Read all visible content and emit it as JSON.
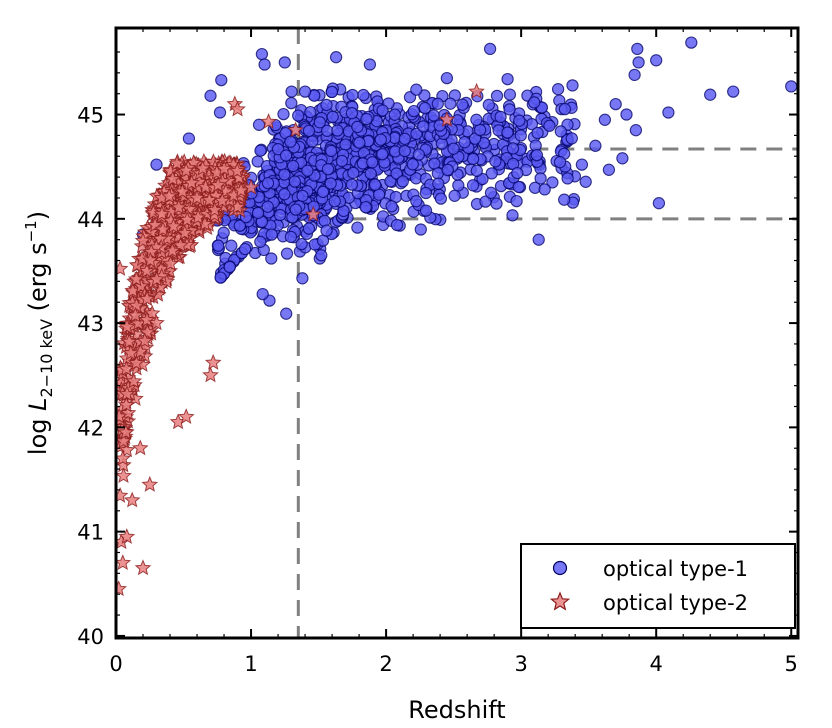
{
  "chart_data": {
    "type": "scatter",
    "xlabel": "Redshift",
    "ylabel": {
      "prefix": "log ",
      "symbol": "L",
      "subscript": "2−10 keV",
      "unit_open": " (erg s",
      "unit_exponent": "−1",
      "unit_close": ")"
    },
    "xlim": [
      0,
      5.05
    ],
    "ylim": [
      39.98,
      45.83
    ],
    "x_ticks": [
      0,
      1,
      2,
      3,
      4,
      5
    ],
    "y_ticks": [
      40,
      41,
      42,
      43,
      44,
      45
    ],
    "grid": false,
    "legend_position": "bottom-right",
    "reference_lines": {
      "vertical_x": [
        1.35
      ],
      "horizontal_y": [
        44.0,
        44.67
      ]
    },
    "series": [
      {
        "name": "optical type-1",
        "marker": "circle",
        "color": "#5a5af2",
        "edge_color": "#000066",
        "generated": true,
        "count": 1100,
        "seed": 11,
        "outliers": [
          [
            1.08,
            45.58
          ],
          [
            1.1,
            45.48
          ],
          [
            1.25,
            45.5
          ],
          [
            1.3,
            45.22
          ],
          [
            1.4,
            45.22
          ],
          [
            1.63,
            45.55
          ],
          [
            1.88,
            45.48
          ],
          [
            2.45,
            45.35
          ],
          [
            2.77,
            45.63
          ],
          [
            2.9,
            45.34
          ],
          [
            3.38,
            45.28
          ],
          [
            3.7,
            45.1
          ],
          [
            3.78,
            45.0
          ],
          [
            3.86,
            45.63
          ],
          [
            3.87,
            45.5
          ],
          [
            3.84,
            45.38
          ],
          [
            4.0,
            45.52
          ],
          [
            4.09,
            45.02
          ],
          [
            4.26,
            45.69
          ],
          [
            4.4,
            45.19
          ],
          [
            4.57,
            45.22
          ],
          [
            5.0,
            45.27
          ],
          [
            3.65,
            44.47
          ],
          [
            3.75,
            44.58
          ],
          [
            4.02,
            44.15
          ],
          [
            3.13,
            43.8
          ],
          [
            3.45,
            44.52
          ],
          [
            3.55,
            44.7
          ],
          [
            3.62,
            44.95
          ],
          [
            3.85,
            44.85
          ],
          [
            1.26,
            43.09
          ],
          [
            0.78,
            45.33
          ],
          [
            0.7,
            45.18
          ],
          [
            0.77,
            45.02
          ],
          [
            0.54,
            44.77
          ],
          [
            0.3,
            44.52
          ],
          [
            0.2,
            43.85
          ],
          [
            0.28,
            43.65
          ],
          [
            1.38,
            43.43
          ],
          [
            1.52,
            43.65
          ]
        ]
      },
      {
        "name": "optical type-2",
        "marker": "star",
        "color": "#e88080",
        "edge_color": "#8b1a1a",
        "generated": true,
        "count": 720,
        "seed": 7,
        "outliers": [
          [
            0.02,
            40.45
          ],
          [
            0.05,
            40.7
          ],
          [
            0.2,
            40.65
          ],
          [
            0.04,
            40.9
          ],
          [
            0.08,
            40.95
          ],
          [
            0.12,
            41.3
          ],
          [
            0.25,
            41.45
          ],
          [
            0.05,
            41.7
          ],
          [
            0.18,
            41.8
          ],
          [
            0.46,
            42.05
          ],
          [
            0.52,
            42.1
          ],
          [
            0.7,
            42.5
          ],
          [
            0.72,
            42.62
          ],
          [
            0.03,
            43.52
          ],
          [
            0.42,
            44.38
          ],
          [
            0.88,
            45.1
          ],
          [
            0.9,
            45.05
          ],
          [
            2.67,
            45.22
          ],
          [
            2.45,
            44.95
          ],
          [
            1.13,
            44.93
          ],
          [
            1.33,
            44.85
          ],
          [
            1.46,
            44.04
          ],
          [
            1.0,
            44.3
          ],
          [
            0.6,
            44.2
          ],
          [
            0.3,
            43.0
          ]
        ]
      }
    ]
  }
}
